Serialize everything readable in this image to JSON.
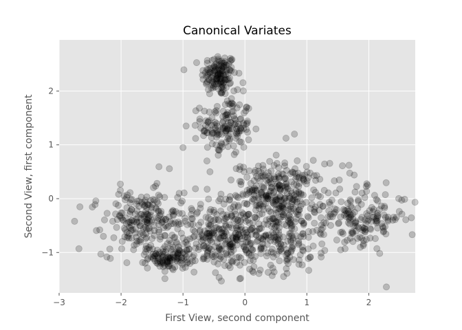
{
  "chart_data": {
    "type": "scatter",
    "title": "Canonical Variates",
    "xlabel": "First View, second component",
    "ylabel": "Second View, first component",
    "xlim": [
      -3.0,
      2.75
    ],
    "ylim": [
      -1.75,
      2.95
    ],
    "xticks": [
      -3,
      -2,
      -1,
      0,
      1,
      2
    ],
    "yticks": [
      -1,
      0,
      1,
      2
    ],
    "grid": true,
    "background": "#E5E5E5",
    "grid_color": "#FFFFFF",
    "point_color": "#000000",
    "point_alpha": 0.2,
    "clusters": [
      {
        "cx": -0.42,
        "cy": 2.3,
        "sx": 0.14,
        "sy": 0.2,
        "n": 140
      },
      {
        "cx": -0.3,
        "cy": 1.35,
        "sx": 0.2,
        "sy": 0.28,
        "n": 150
      },
      {
        "cx": 0.55,
        "cy": 0.1,
        "sx": 0.38,
        "sy": 0.28,
        "n": 260
      },
      {
        "cx": -1.2,
        "cy": -1.1,
        "sx": 0.18,
        "sy": 0.1,
        "n": 110
      },
      {
        "cx": -1.7,
        "cy": -0.45,
        "sx": 0.3,
        "sy": 0.3,
        "n": 170
      },
      {
        "cx": -0.5,
        "cy": -0.7,
        "sx": 0.45,
        "sy": 0.3,
        "n": 220
      },
      {
        "cx": 0.5,
        "cy": -0.75,
        "sx": 0.45,
        "sy": 0.3,
        "n": 200
      },
      {
        "cx": 1.9,
        "cy": -0.35,
        "sx": 0.35,
        "sy": 0.25,
        "n": 150
      },
      {
        "cx": 0.0,
        "cy": -0.2,
        "sx": 1.1,
        "sy": 0.5,
        "n": 130
      }
    ],
    "outliers": [
      {
        "x": -2.75,
        "y": -0.42
      },
      {
        "x": -2.68,
        "y": -0.93
      },
      {
        "x": -0.38,
        "y": -1.53
      },
      {
        "x": -0.07,
        "y": -1.48
      },
      {
        "x": 0.8,
        "y": 1.2
      },
      {
        "x": -0.95,
        "y": 1.35
      },
      {
        "x": -1.0,
        "y": 0.95
      },
      {
        "x": 1.68,
        "y": 0.62
      }
    ]
  }
}
